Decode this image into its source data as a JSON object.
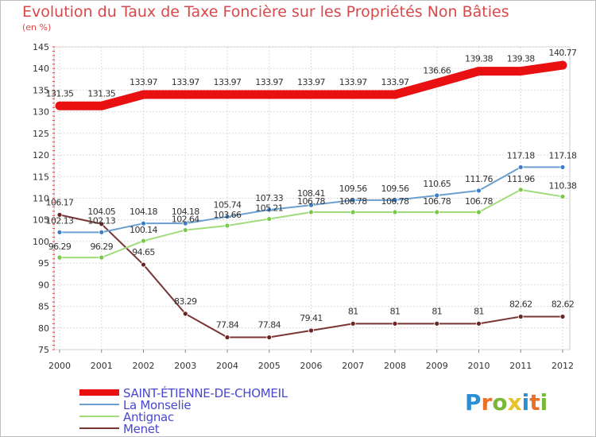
{
  "title": "Evolution du Taux de Taxe Foncière sur les Propriétés Non Bâties",
  "unit": "(en %)",
  "logo": {
    "letters": [
      {
        "ch": "P",
        "color": "#2a8fd4"
      },
      {
        "ch": "r",
        "color": "#e8722a"
      },
      {
        "ch": "o",
        "color": "#79b83a"
      },
      {
        "ch": "x",
        "color": "#e8c22a"
      },
      {
        "ch": "i",
        "color": "#2a8fd4"
      },
      {
        "ch": "t",
        "color": "#e8722a"
      },
      {
        "ch": "i",
        "color": "#79b83a"
      }
    ]
  },
  "chart_data": {
    "type": "line",
    "title": "Evolution du Taux de Taxe Foncière sur les Propriétés Non Bâties",
    "ylabel": "(en %)",
    "xlabel": "",
    "categories": [
      "2000",
      "2001",
      "2002",
      "2003",
      "2004",
      "2005",
      "2006",
      "2007",
      "2008",
      "2009",
      "2010",
      "2011",
      "2012"
    ],
    "ylim": [
      75,
      145
    ],
    "yticks": [
      75,
      80,
      85,
      90,
      95,
      100,
      105,
      110,
      115,
      120,
      125,
      130,
      135,
      140,
      145
    ],
    "grid": true,
    "legend_position": "bottom-left",
    "series": [
      {
        "name": "SAINT-ÉTIENNE-DE-CHOMEIL",
        "color": "#e81010",
        "emphasis": true,
        "values": [
          131.35,
          131.35,
          133.97,
          133.97,
          133.97,
          133.97,
          133.97,
          133.97,
          133.97,
          136.66,
          139.38,
          139.38,
          140.77
        ],
        "labels": [
          "131.35",
          "131.35",
          "133.97",
          "133.97",
          "133.97",
          "133.97",
          "133.97",
          "133.97",
          "133.97",
          "136.66",
          "139.38",
          "139.38",
          "140.77"
        ]
      },
      {
        "name": "La Monselie",
        "color": "#6a9fd0",
        "dot": "#3a7fc8",
        "values": [
          102.13,
          102.13,
          104.18,
          104.18,
          105.74,
          107.33,
          108.41,
          109.56,
          109.56,
          110.65,
          111.76,
          117.18,
          117.18
        ],
        "labels": [
          "102.13",
          "102.13",
          "104.18",
          "104.18",
          "105.74",
          "107.33",
          "108.41",
          "109.56",
          "109.56",
          "110.65",
          "111.76",
          "117.18",
          "117.18"
        ]
      },
      {
        "name": "Antignac",
        "color": "#9fdc7a",
        "dot": "#7ac84a",
        "values": [
          96.29,
          96.29,
          100.14,
          102.64,
          103.66,
          105.21,
          106.78,
          106.78,
          106.78,
          106.78,
          106.78,
          111.96,
          110.38
        ],
        "labels": [
          "96.29",
          "96.29",
          "100.14",
          "102.64",
          "103.66",
          "105.21",
          "106.78",
          "106.78",
          "106.78",
          "106.78",
          "106.78",
          "111.96",
          "110.38"
        ]
      },
      {
        "name": "Menet",
        "color": "#7a3535",
        "dot": "#6a2525",
        "values": [
          106.17,
          104.05,
          94.65,
          83.29,
          77.84,
          77.84,
          79.41,
          81,
          81,
          81,
          81,
          82.62,
          82.62
        ],
        "labels": [
          "106.17",
          "104.05",
          "94.65",
          "83.29",
          "77.84",
          "77.84",
          "79.41",
          "81",
          "81",
          "81",
          "81",
          "82.62",
          "82.62"
        ]
      }
    ]
  }
}
